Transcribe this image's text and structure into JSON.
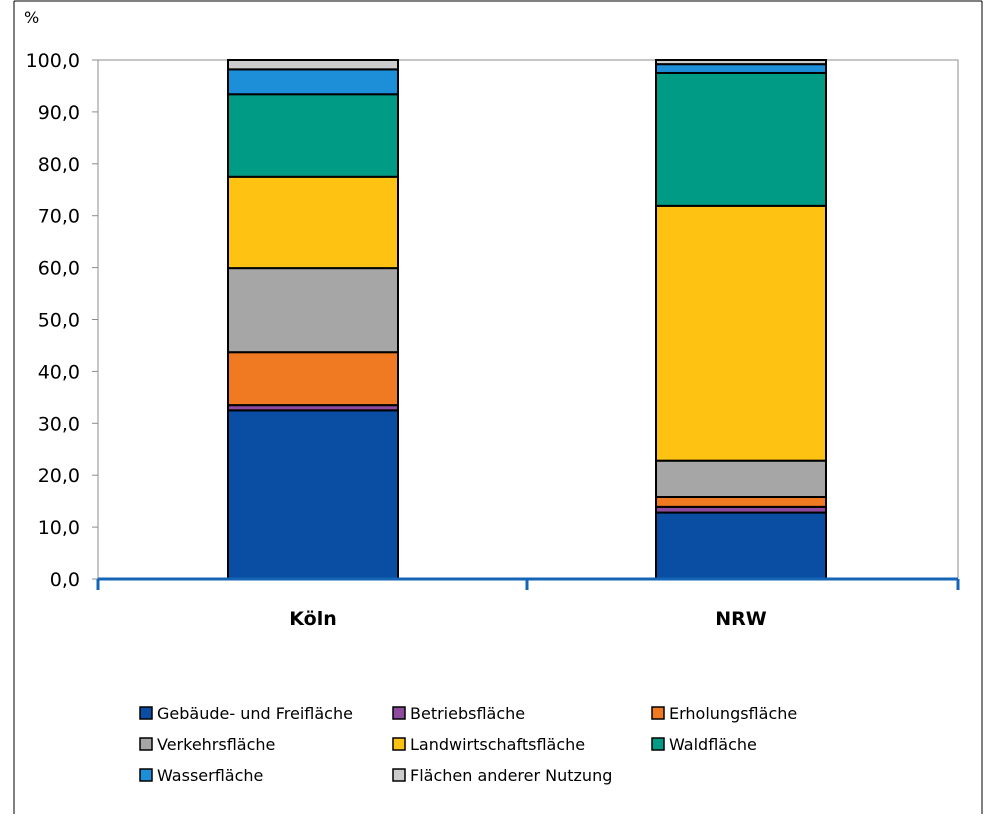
{
  "chart_data": {
    "type": "bar",
    "stacked": true,
    "unit_label": "%",
    "title": "",
    "xlabel": "",
    "ylabel": "%",
    "categories": [
      "Köln",
      "NRW"
    ],
    "ylim": [
      0,
      100
    ],
    "yticks": [
      "0,0",
      "10,0",
      "20,0",
      "30,0",
      "40,0",
      "50,0",
      "60,0",
      "70,0",
      "80,0",
      "90,0",
      "100,0"
    ],
    "series": [
      {
        "name": "Gebäude- und Freifläche",
        "color": "#0a4ea3",
        "values": [
          32.5,
          12.8
        ]
      },
      {
        "name": "Betriebsfläche",
        "color": "#8e4a9c",
        "values": [
          1.0,
          1.1
        ]
      },
      {
        "name": "Erholungsfläche",
        "color": "#f07a22",
        "values": [
          10.2,
          1.9
        ]
      },
      {
        "name": "Verkehrsfläche",
        "color": "#a6a6a6",
        "values": [
          16.2,
          7.0
        ]
      },
      {
        "name": "Landwirtschaftsfläche",
        "color": "#fec312",
        "values": [
          17.6,
          49.1
        ]
      },
      {
        "name": "Waldfläche",
        "color": "#009b84",
        "values": [
          15.9,
          25.6
        ]
      },
      {
        "name": "Wasserfläche",
        "color": "#1d8fd8",
        "values": [
          4.8,
          1.7
        ]
      },
      {
        "name": "Flächen anderer Nutzung",
        "color": "#cccccc",
        "values": [
          1.8,
          0.8
        ]
      }
    ],
    "grid": false,
    "legend_position": "bottom"
  }
}
